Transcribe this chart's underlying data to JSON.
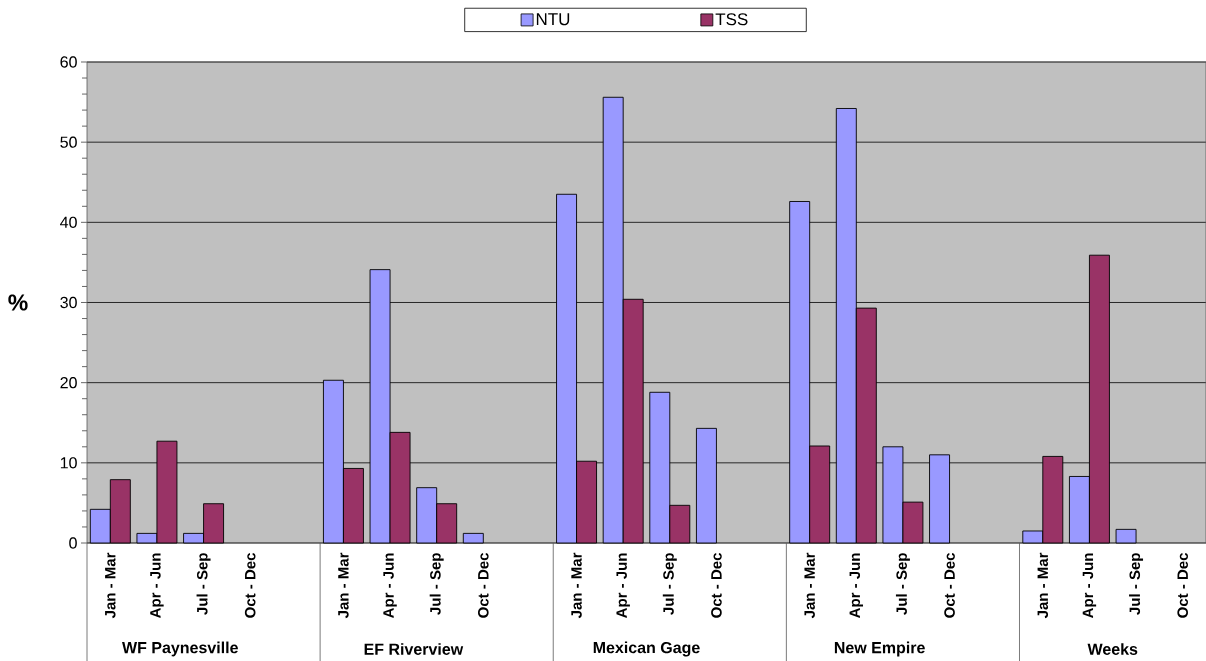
{
  "chart_data": {
    "type": "bar",
    "categories": [
      "Jan - Mar",
      "Apr - Jun",
      "Jul - Sep",
      "Oct - Dec",
      null,
      "Jan - Mar",
      "Apr - Jun",
      "Jul - Sep",
      "Oct - Dec",
      null,
      "Jan - Mar",
      "Apr - Jun",
      "Jul - Sep",
      "Oct - Dec",
      null,
      "Jan - Mar",
      "Apr - Jun",
      "Jul - Sep",
      "Oct - Dec",
      null,
      "Jan - Mar",
      "Apr - Jun",
      "Jul - Sep",
      "Oct - Dec"
    ],
    "series": [
      {
        "name": "NTU",
        "color": "#9999ff",
        "values": [
          4.2,
          1.2,
          1.2,
          null,
          null,
          20.3,
          34.1,
          6.9,
          1.2,
          null,
          43.5,
          55.6,
          18.8,
          14.3,
          null,
          42.6,
          54.2,
          12.0,
          11.0,
          null,
          1.5,
          8.3,
          1.7,
          null
        ]
      },
      {
        "name": "TSS",
        "color": "#993366",
        "values": [
          7.9,
          12.7,
          4.9,
          null,
          null,
          9.3,
          13.8,
          4.9,
          null,
          null,
          10.2,
          30.4,
          4.7,
          null,
          null,
          12.1,
          29.3,
          5.1,
          null,
          null,
          10.8,
          35.9,
          null,
          null
        ]
      }
    ],
    "ylabel": "%",
    "ylim": [
      0,
      60
    ],
    "yticks": [
      0,
      {
        "value": 2,
        "label": null
      },
      {
        "value": 4,
        "label": null
      },
      {
        "value": 6,
        "label": null
      },
      {
        "value": 8,
        "label": null
      },
      10,
      {
        "value": 12,
        "label": null
      },
      {
        "value": 14,
        "label": null
      },
      {
        "value": 16,
        "label": null
      },
      {
        "value": 18,
        "label": null
      },
      20,
      {
        "value": 22,
        "label": null
      },
      {
        "value": 24,
        "label": null
      },
      {
        "value": 26,
        "label": null
      },
      {
        "value": 28,
        "label": null
      },
      30,
      {
        "value": 32,
        "label": null
      },
      {
        "value": 34,
        "label": null
      },
      {
        "value": 36,
        "label": null
      },
      {
        "value": 38,
        "label": null
      },
      40,
      {
        "value": 42,
        "label": null
      },
      {
        "value": 44,
        "label": null
      },
      {
        "value": 46,
        "label": null
      },
      {
        "value": 48,
        "label": null
      },
      50,
      {
        "value": 52,
        "label": null
      },
      {
        "value": 54,
        "label": null
      },
      {
        "value": 56,
        "label": null
      },
      {
        "value": 58,
        "label": null
      },
      60
    ],
    "grid": "y",
    "legend": "top",
    "annotations": [
      "WF Paynesville",
      "EF Riverview",
      "Mexican Gage",
      "New Empire",
      "Weeks"
    ]
  }
}
